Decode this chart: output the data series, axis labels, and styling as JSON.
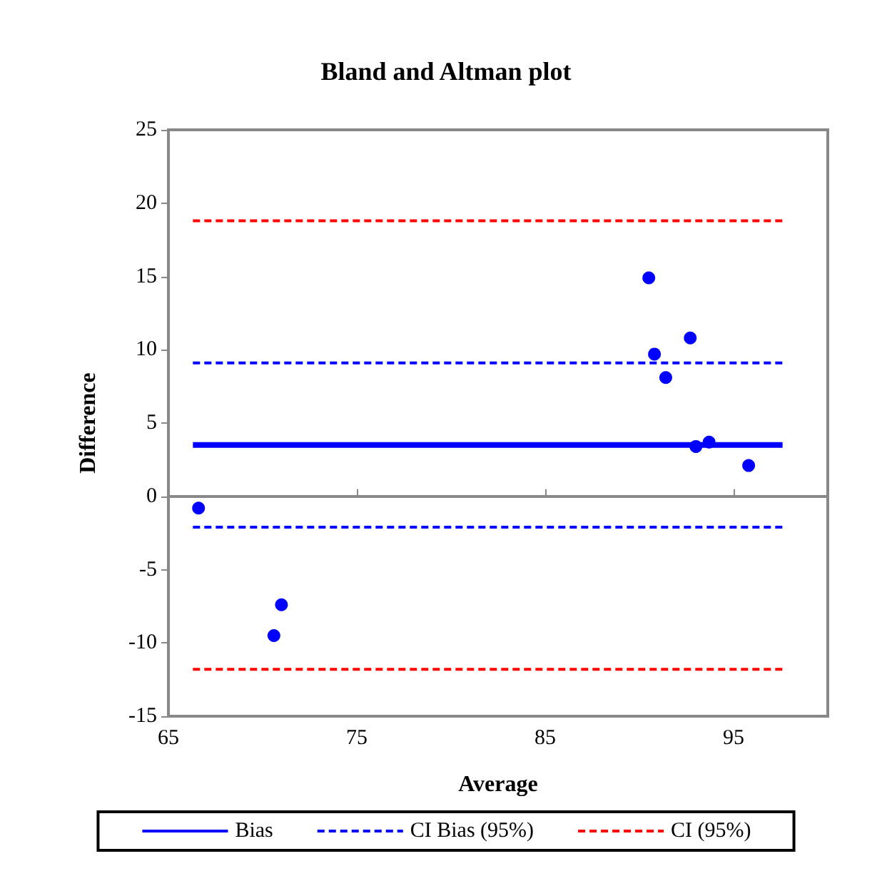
{
  "chart_data": {
    "type": "scatter",
    "title": "Bland and Altman plot",
    "xlabel": "Average",
    "ylabel": "Difference",
    "xlim": [
      65,
      100
    ],
    "xticks": [
      65,
      75,
      85,
      95
    ],
    "ylim": [
      -15,
      25
    ],
    "yticks": [
      -15,
      -10,
      -5,
      0,
      5,
      10,
      15,
      20,
      25
    ],
    "legend": "bottom",
    "series": [
      {
        "color": "#0000ff",
        "marker": "circle",
        "x": [
          66.6,
          70.6,
          71.0,
          90.5,
          90.8,
          91.4,
          92.7,
          93.0,
          93.7,
          95.8
        ],
        "values": [
          -0.8,
          -9.5,
          -7.4,
          14.9,
          9.7,
          8.1,
          10.8,
          3.4,
          3.7,
          2.1
        ]
      },
      {
        "type": "line",
        "name": "Bias",
        "color": "#0000ff",
        "line_style": "solid",
        "marker": "none",
        "x": [
          66.3,
          97.6
        ],
        "values": [
          3.5,
          3.5
        ]
      },
      {
        "type": "line",
        "name": "CI Bias (95%)",
        "color": "#0000ff",
        "line_style": "dashed",
        "marker": "none",
        "x": [
          66.3,
          97.6
        ],
        "values": [
          9.1,
          9.1
        ]
      },
      {
        "type": "line",
        "color": "#0000ff",
        "line_style": "dashed",
        "marker": "none",
        "x": [
          66.3,
          97.6
        ],
        "values": [
          -2.1,
          -2.1
        ]
      },
      {
        "type": "line",
        "name": "CI (95%)",
        "color": "#ff0000",
        "line_style": "dashed",
        "marker": "none",
        "x": [
          66.3,
          97.6
        ],
        "values": [
          18.8,
          18.8
        ]
      },
      {
        "type": "line",
        "color": "#ff0000",
        "line_style": "dashed",
        "marker": "none",
        "x": [
          66.3,
          97.6
        ],
        "values": [
          -11.8,
          -11.8
        ]
      }
    ]
  }
}
